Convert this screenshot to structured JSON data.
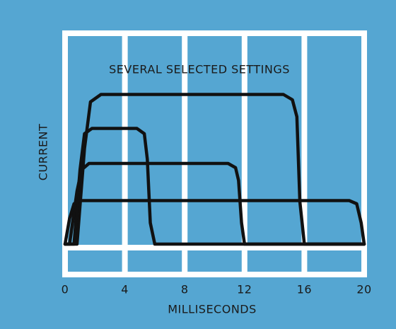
{
  "chart_data": {
    "type": "line",
    "title": "SEVERAL SELECTED SETTINGS",
    "x_label": "MILLISECONDS",
    "y_label": "CURRENT",
    "xlim": [
      0,
      20
    ],
    "xticks": [
      0,
      4,
      8,
      12,
      16,
      20
    ],
    "ylim": [
      0,
      10
    ],
    "grid": true,
    "background": "#55a6d2",
    "grid_color": "#ffffff",
    "series": [
      {
        "color": "#111111",
        "x": [
          0,
          0.8,
          1.3,
          1.7,
          2.4,
          14.6,
          15.2,
          15.5,
          15.7,
          16.0,
          20
        ],
        "values": [
          0,
          0,
          4.5,
          6.7,
          7.05,
          7.05,
          6.8,
          6,
          2,
          0,
          0
        ]
      },
      {
        "color": "#111111",
        "x": [
          0,
          0.6,
          1.0,
          1.3,
          1.8,
          4.8,
          5.3,
          5.5,
          5.7,
          6.0,
          20
        ],
        "values": [
          0,
          0,
          3.5,
          5.2,
          5.45,
          5.45,
          5.2,
          4,
          1,
          0,
          0
        ]
      },
      {
        "color": "#111111",
        "x": [
          0,
          0.3,
          0.8,
          1.1,
          1.6,
          10.9,
          11.4,
          11.6,
          11.8,
          12.0,
          20
        ],
        "values": [
          0,
          0,
          2.5,
          3.5,
          3.8,
          3.8,
          3.6,
          3,
          1,
          0,
          0
        ]
      },
      {
        "color": "#111111",
        "x": [
          0,
          0.3,
          0.6,
          1.0,
          19.0,
          19.5,
          19.8,
          20
        ],
        "values": [
          0,
          1.2,
          1.9,
          2.05,
          2.05,
          1.9,
          1.0,
          0
        ]
      }
    ]
  }
}
